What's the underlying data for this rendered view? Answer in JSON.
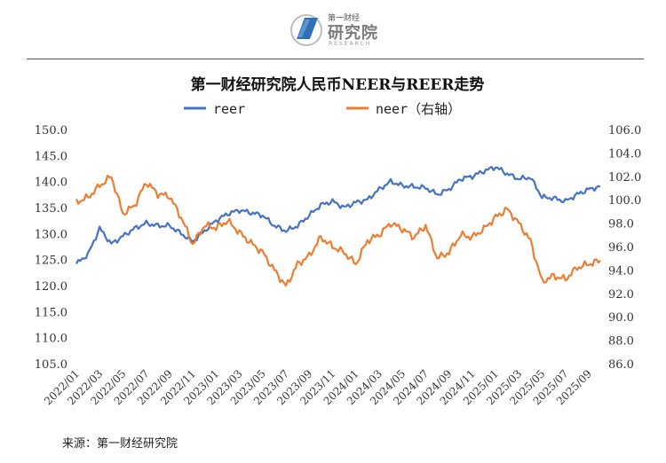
{
  "brand": {
    "logo_name": "第一财经",
    "logo_main": "研究院",
    "logo_sub": "RESEARCH",
    "colors": {
      "logo_blue": "#2f6fb3",
      "logo_gray": "#8a8a8a"
    }
  },
  "source_text": "来源：第一财经研究院",
  "chart_data": {
    "type": "line",
    "title": "第一财经研究院人民币NEER与REER走势",
    "legend": {
      "placement": "top",
      "entries": [
        {
          "label": "reer",
          "color": "#4472c4"
        },
        {
          "label": "neer（右轴）",
          "color": "#ed7d31"
        }
      ]
    },
    "grid": false,
    "x": [
      "2022/01",
      "2022/02",
      "2022/03",
      "2022/04",
      "2022/05",
      "2022/06",
      "2022/07",
      "2022/08",
      "2022/09",
      "2022/10",
      "2022/11",
      "2022/12",
      "2023/01",
      "2023/02",
      "2023/03",
      "2023/04",
      "2023/05",
      "2023/06",
      "2023/07",
      "2023/08",
      "2023/09",
      "2023/10",
      "2023/11",
      "2023/12",
      "2024/01",
      "2024/02",
      "2024/03",
      "2024/04",
      "2024/05",
      "2024/06",
      "2024/07",
      "2024/08",
      "2024/09",
      "2024/10",
      "2024/11",
      "2024/12",
      "2025/01",
      "2025/02",
      "2025/03",
      "2025/04",
      "2025/05",
      "2025/06",
      "2025/07",
      "2025/08",
      "2025/09",
      "2025/10"
    ],
    "xticklabels": [
      "2022/01",
      "2022/03",
      "2022/05",
      "2022/07",
      "2022/09",
      "2022/11",
      "2023/01",
      "2023/03",
      "2023/05",
      "2023/07",
      "2023/09",
      "2023/11",
      "2024/01",
      "2024/03",
      "2024/05",
      "2024/07",
      "2024/09",
      "2024/11",
      "2025/01",
      "2025/03",
      "2025/05",
      "2025/07",
      "2025/09"
    ],
    "y_left": {
      "ylim": [
        105,
        150
      ],
      "ticks": [
        "105.0",
        "110.0",
        "115.0",
        "120.0",
        "125.0",
        "130.0",
        "135.0",
        "140.0",
        "145.0",
        "150.0"
      ]
    },
    "y_right": {
      "ylim": [
        86,
        106
      ],
      "ticks": [
        "86.0",
        "88.0",
        "90.0",
        "92.0",
        "94.0",
        "96.0",
        "98.0",
        "100.0",
        "102.0",
        "104.0",
        "106.0"
      ]
    },
    "series": [
      {
        "name": "reer",
        "axis": "left",
        "color": "#4472c4",
        "values": [
          124.2,
          126.0,
          131.0,
          128.0,
          129.5,
          131.0,
          132.0,
          131.5,
          131.5,
          130.0,
          128.5,
          130.5,
          132.5,
          133.8,
          134.5,
          134.0,
          133.5,
          131.5,
          130.5,
          131.5,
          133.5,
          135.5,
          136.2,
          135.0,
          136.0,
          136.5,
          138.5,
          140.0,
          139.2,
          139.0,
          138.8,
          137.5,
          138.5,
          140.5,
          141.0,
          142.0,
          142.8,
          141.5,
          140.5,
          140.8,
          137.0,
          136.8,
          136.2,
          137.5,
          138.5,
          139.0
        ]
      },
      {
        "name": "neer（右轴）",
        "axis": "right",
        "color": "#ed7d31",
        "values": [
          99.8,
          100.2,
          101.2,
          102.0,
          98.8,
          99.5,
          101.5,
          100.5,
          100.3,
          98.5,
          96.2,
          97.8,
          97.6,
          98.2,
          97.2,
          96.3,
          95.5,
          94.0,
          92.6,
          94.5,
          95.2,
          96.8,
          96.0,
          95.5,
          94.5,
          96.5,
          97.0,
          98.0,
          97.5,
          96.8,
          97.8,
          95.0,
          95.5,
          97.0,
          96.8,
          97.5,
          98.5,
          99.2,
          98.0,
          96.5,
          93.0,
          93.5,
          93.2,
          94.2,
          94.5,
          94.8
        ]
      }
    ]
  }
}
